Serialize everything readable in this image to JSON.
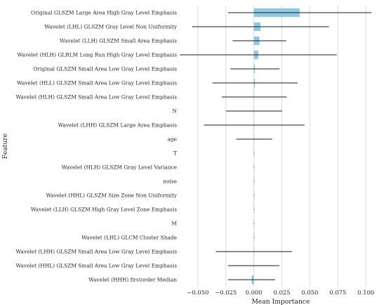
{
  "chart_data": {
    "type": "bar",
    "orientation": "horizontal",
    "title": "",
    "xlabel": "Mean Importance",
    "ylabel": "Feature",
    "xlim": [
      -0.065,
      0.113
    ],
    "xticks": [
      -0.05,
      -0.025,
      0.0,
      0.025,
      0.05,
      0.075,
      0.1
    ],
    "xtick_labels": [
      "−0.050",
      "−0.025",
      "0.000",
      "0.025",
      "0.050",
      "0.075",
      "0.100"
    ],
    "grid": "vertical",
    "error_bars": true,
    "bar_color": "#8ecae6",
    "errorbar_color": "#1a1a1a",
    "grid_color": "#d0d0d0",
    "categories": [
      "Original GLSZM Large Area High Gray Level Emphasis",
      "Wavelet (LHL) GLSZM Gray Level Non Uniformity",
      "Wavelet (LLH) GLSZM Small Area Emphasis",
      "Wavelet (HLH) GLRLM Long Run High Gray Level Emphasis",
      "Original GLSZM Small Area Low Gray Level Emphasis",
      "Wavelet (HLL) GLSZM Small Area Low Gray Level Emphasis",
      "Wavelet (HLH) GLSZM Small Area Low Gray Level Emphasis",
      "N",
      "Wavelet (LHH) GLSZM Large Area Emphasis",
      "age",
      "T",
      "Wavelet (HLH) GLSZM Gray Level Variance",
      "noise",
      "Wavelet (HHL) GLSZM Size Zone Non Uniformity",
      "Wavelet (LLH) GLSZM High Gray Level Zone Emphasis",
      "M",
      "Wavelet (LHL) GLCM Cluster Shade",
      "Wavelet (LHH) GLSZM Small Area Low Gray Level Emphasis",
      "Wavelet (HHL) GLSZM Small Area Low Gray Level Emphasis",
      "Wavelet (HHH) firstorder Median"
    ],
    "values": [
      0.041,
      0.006,
      0.005,
      0.004,
      0.001,
      0.001,
      0.0003,
      0.0003,
      0.0003,
      0.0003,
      0.0002,
      0.0002,
      0.0002,
      0.0001,
      0.0001,
      0.0001,
      0.0001,
      0.0,
      -0.0002,
      -0.002
    ],
    "errors": [
      0.064,
      0.061,
      0.024,
      0.07,
      0.022,
      0.038,
      0.029,
      0.025,
      0.045,
      0.016,
      0.0008,
      0.0008,
      0.0008,
      0.0008,
      0.0008,
      0.0008,
      0.0008,
      0.034,
      0.023,
      0.021
    ]
  }
}
